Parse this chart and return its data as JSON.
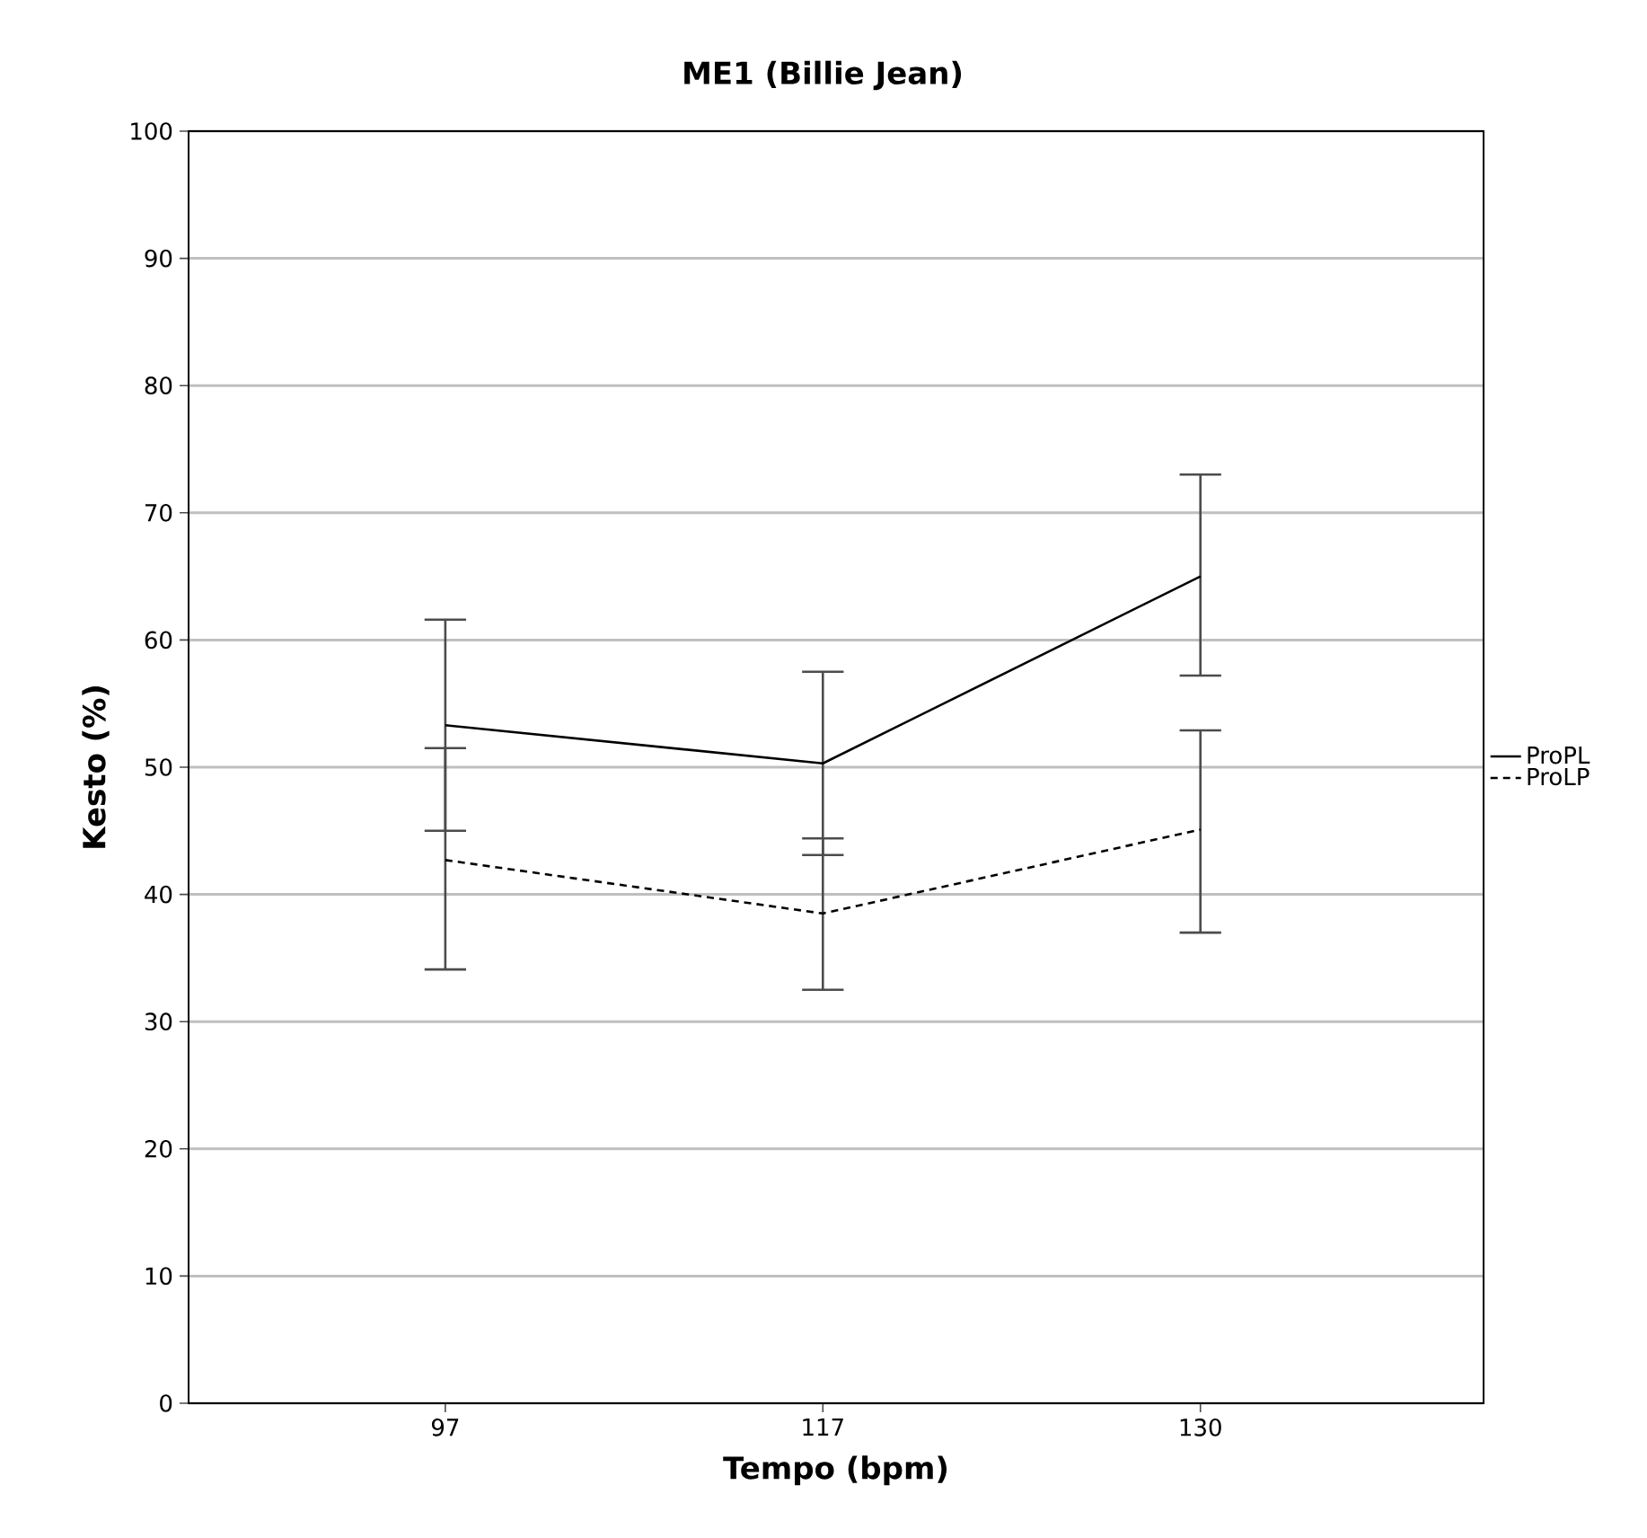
{
  "chart_data": {
    "type": "line",
    "title": "ME1 (Billie Jean)",
    "xlabel": "Tempo (bpm)",
    "ylabel": "Kesto (%)",
    "categories": [
      "97",
      "117",
      "130"
    ],
    "series": [
      {
        "name": "ProPL",
        "color": "#000000",
        "line_style": "solid",
        "values": [
          53.3,
          50.3,
          65.0
        ],
        "errors": [
          [
            45.0,
            61.6
          ],
          [
            43.1,
            57.5
          ],
          [
            57.2,
            73.0
          ]
        ]
      },
      {
        "name": "ProLP",
        "color": "#000000",
        "line_style": "dashed",
        "values": [
          42.7,
          38.5,
          45.1
        ],
        "errors": [
          [
            34.1,
            51.5
          ],
          [
            32.5,
            44.4
          ],
          [
            37.0,
            52.9
          ]
        ]
      }
    ],
    "ylim": [
      0,
      100
    ],
    "yticks": [
      0,
      10,
      20,
      30,
      40,
      50,
      60,
      70,
      80,
      90,
      100
    ],
    "grid": "y",
    "legend": "right",
    "marker": "none"
  }
}
